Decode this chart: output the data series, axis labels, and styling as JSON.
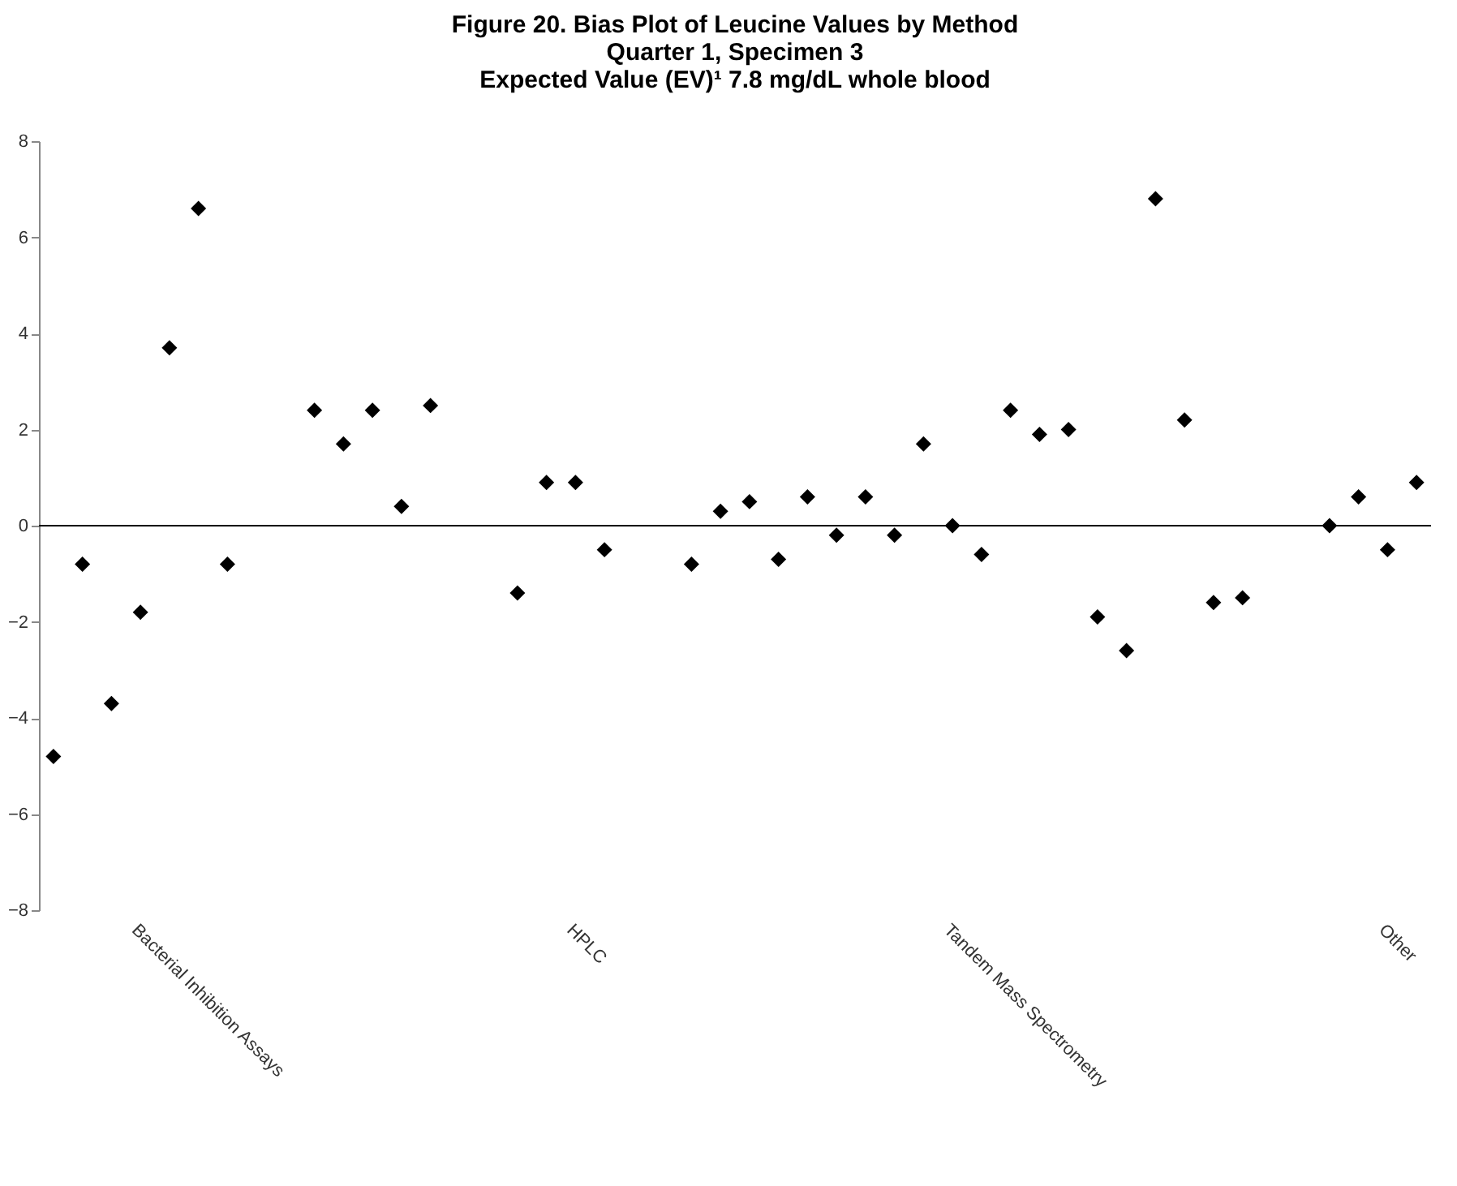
{
  "chart_data": {
    "type": "scatter",
    "title": "Figure 20. Bias Plot of Leucine Values by Method",
    "subtitle": "Quarter 1, Specimen 3\nExpected Value (EV)¹ 7.8 mg/dL whole blood",
    "categories": [
      null,
      null,
      null,
      "Bacterial Inhibition Assays",
      null,
      null,
      null,
      null,
      null,
      null,
      null,
      null,
      null,
      null,
      null,
      null,
      null,
      null,
      "HPLC",
      null,
      null,
      null,
      null,
      null,
      null,
      null,
      null,
      null,
      null,
      null,
      null,
      "Tandem Mass Spectrometry",
      null,
      null,
      null,
      null,
      null,
      null,
      null,
      null,
      null,
      null,
      null,
      null,
      null,
      null,
      "Other",
      null
    ],
    "series": [
      {
        "color": "#000000",
        "values": [
          -4.8,
          -0.8,
          -3.7,
          -1.8,
          3.7,
          6.6,
          -0.8,
          null,
          null,
          2.4,
          1.7,
          2.4,
          0.4,
          2.5,
          null,
          null,
          -1.4,
          0.9,
          0.9,
          -0.5,
          null,
          null,
          -0.8,
          0.3,
          0.5,
          -0.7,
          0.6,
          -0.2,
          0.6,
          -0.2,
          1.7,
          0,
          -0.6,
          2.4,
          1.9,
          2.0,
          -1.9,
          -2.6,
          6.8,
          2.2,
          -1.6,
          -1.5,
          null,
          null,
          0,
          0.6,
          -0.5,
          0.9
        ]
      }
    ],
    "ylim": [
      -8,
      8
    ],
    "yticks": [
      -8,
      -6,
      -4,
      -2,
      0,
      2,
      4,
      6,
      8
    ],
    "ref_lines": [
      {
        "axis": "y",
        "value": 0,
        "color": "#000000"
      }
    ],
    "marker": "diamond",
    "grid": false
  }
}
